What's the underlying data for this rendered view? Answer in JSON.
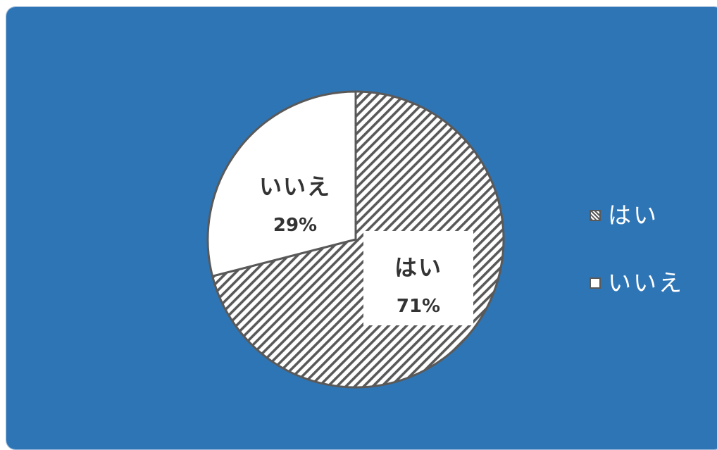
{
  "chart_data": {
    "type": "pie",
    "categories": [
      "はい",
      "いいえ"
    ],
    "values": [
      71,
      29
    ],
    "data_labels": [
      {
        "category": "はい",
        "percent": "71%"
      },
      {
        "category": "いいえ",
        "percent": "29%"
      }
    ],
    "slice_fills": [
      "diagonal-hatch",
      "solid-white"
    ],
    "legend_position": "right",
    "title": ""
  },
  "colors": {
    "background": "#2e75b6",
    "outline": "#595959",
    "hatch": "#595959",
    "slice_fill": "#ffffff",
    "label_text": "#333333"
  },
  "legend": {
    "items": [
      {
        "label": "はい",
        "swatch": "hatched"
      },
      {
        "label": "いいえ",
        "swatch": "white"
      }
    ]
  }
}
